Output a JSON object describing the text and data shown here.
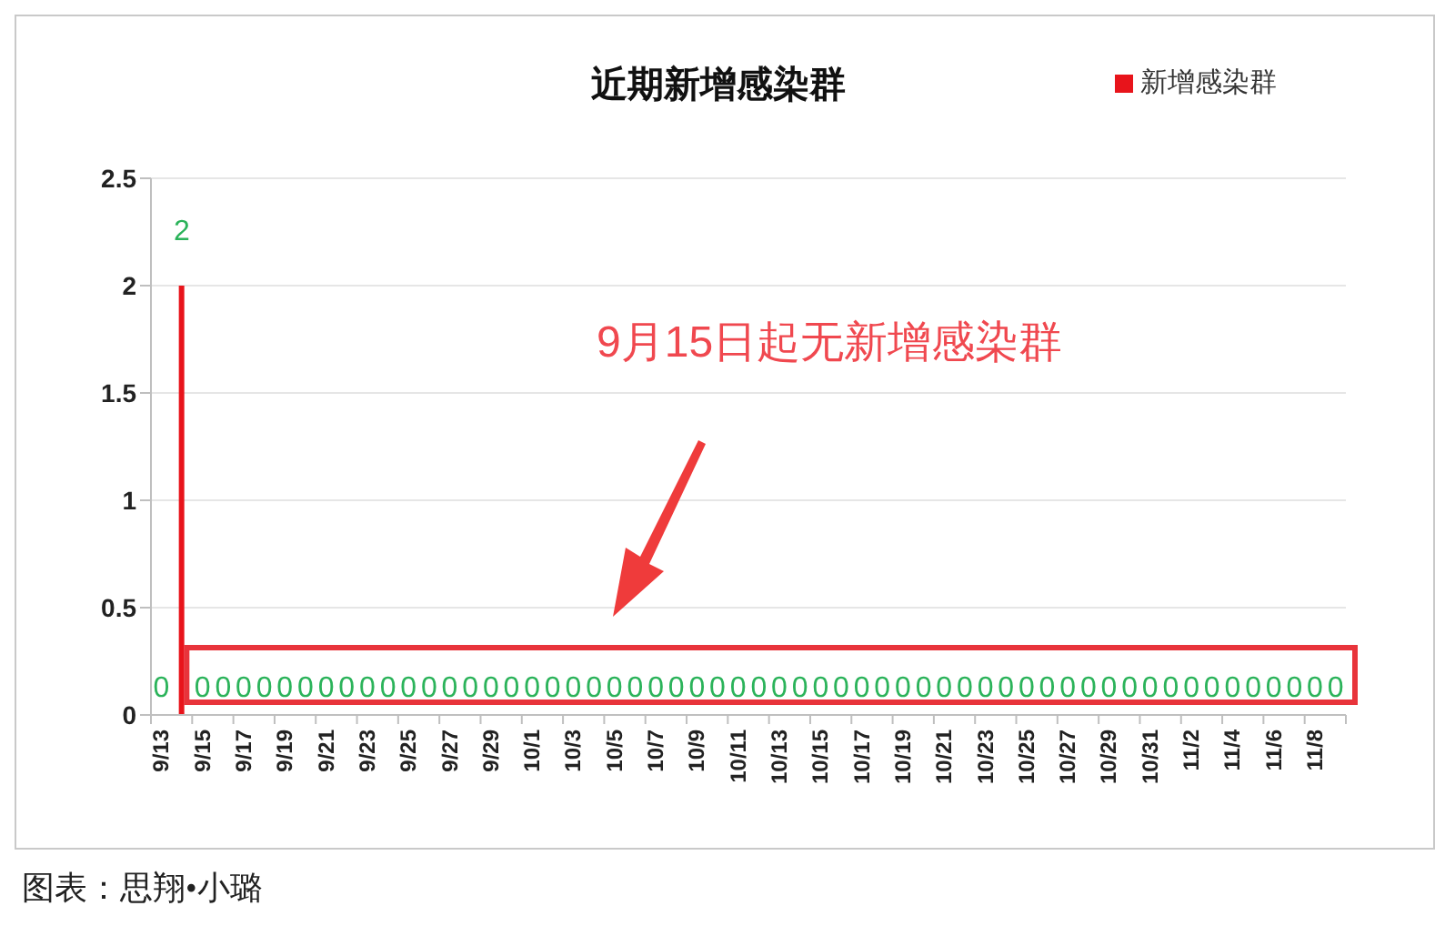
{
  "chart_data": {
    "type": "bar",
    "title": "近期新增感染群",
    "categories": [
      "9/13",
      null,
      "9/15",
      null,
      "9/17",
      null,
      "9/19",
      null,
      "9/21",
      null,
      "9/23",
      null,
      "9/25",
      null,
      "9/27",
      null,
      "9/29",
      null,
      "10/1",
      null,
      "10/3",
      null,
      "10/5",
      null,
      "10/7",
      null,
      "10/9",
      null,
      "10/11",
      null,
      "10/13",
      null,
      "10/15",
      null,
      "10/17",
      null,
      "10/19",
      null,
      "10/21",
      null,
      "10/23",
      null,
      "10/25",
      null,
      "10/27",
      null,
      "10/29",
      null,
      "10/31",
      null,
      "11/2",
      null,
      "11/4",
      null,
      "11/6",
      null,
      "11/8",
      null
    ],
    "series": [
      {
        "name": "新增感染群",
        "color": "#e8141b",
        "values": [
          0,
          2,
          0,
          0,
          0,
          0,
          0,
          0,
          0,
          0,
          0,
          0,
          0,
          0,
          0,
          0,
          0,
          0,
          0,
          0,
          0,
          0,
          0,
          0,
          0,
          0,
          0,
          0,
          0,
          0,
          0,
          0,
          0,
          0,
          0,
          0,
          0,
          0,
          0,
          0,
          0,
          0,
          0,
          0,
          0,
          0,
          0,
          0,
          0,
          0,
          0,
          0,
          0,
          0,
          0,
          0,
          0,
          0
        ]
      }
    ],
    "ylim": [
      0,
      2.5
    ],
    "yticks": [
      0,
      0.5,
      1,
      1.5,
      2,
      2.5
    ],
    "grid": "y",
    "legend": "top right",
    "data_labels": true,
    "annotations": [
      "9月15日起无新增感染群",
      "图表：思翔•小璐"
    ]
  }
}
